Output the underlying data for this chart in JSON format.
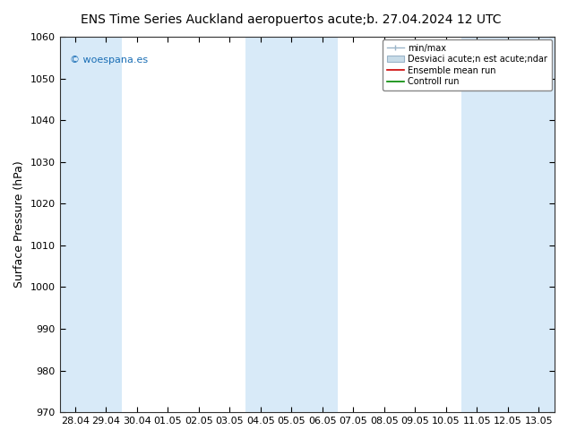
{
  "title_left": "ENS Time Series Auckland aeropuerto",
  "title_right": "s acute;b. 27.04.2024 12 UTC",
  "ylabel": "Surface Pressure (hPa)",
  "ylim": [
    970,
    1060
  ],
  "yticks": [
    970,
    980,
    990,
    1000,
    1010,
    1020,
    1030,
    1040,
    1050,
    1060
  ],
  "xtick_labels": [
    "28.04",
    "29.04",
    "30.04",
    "01.05",
    "02.05",
    "03.05",
    "04.05",
    "05.05",
    "06.05",
    "07.05",
    "08.05",
    "09.05",
    "10.05",
    "11.05",
    "12.05",
    "13.05"
  ],
  "background_color": "#ffffff",
  "plot_bg_color": "#ffffff",
  "shade_color": "#d8eaf8",
  "shaded_x_indices": [
    0,
    1,
    6,
    7,
    8,
    13,
    14,
    15
  ],
  "watermark": "© woespana.es",
  "legend_entries": [
    "min/max",
    "Desviaci acute;n est acute;ndar",
    "Ensemble mean run",
    "Controll run"
  ],
  "legend_line_colors": [
    "#a0b8cc",
    "#c0d8e8",
    "#cc0000",
    "#008800"
  ],
  "title_fontsize": 10,
  "axis_label_fontsize": 9,
  "tick_fontsize": 8,
  "watermark_color": "#1a6eb5"
}
